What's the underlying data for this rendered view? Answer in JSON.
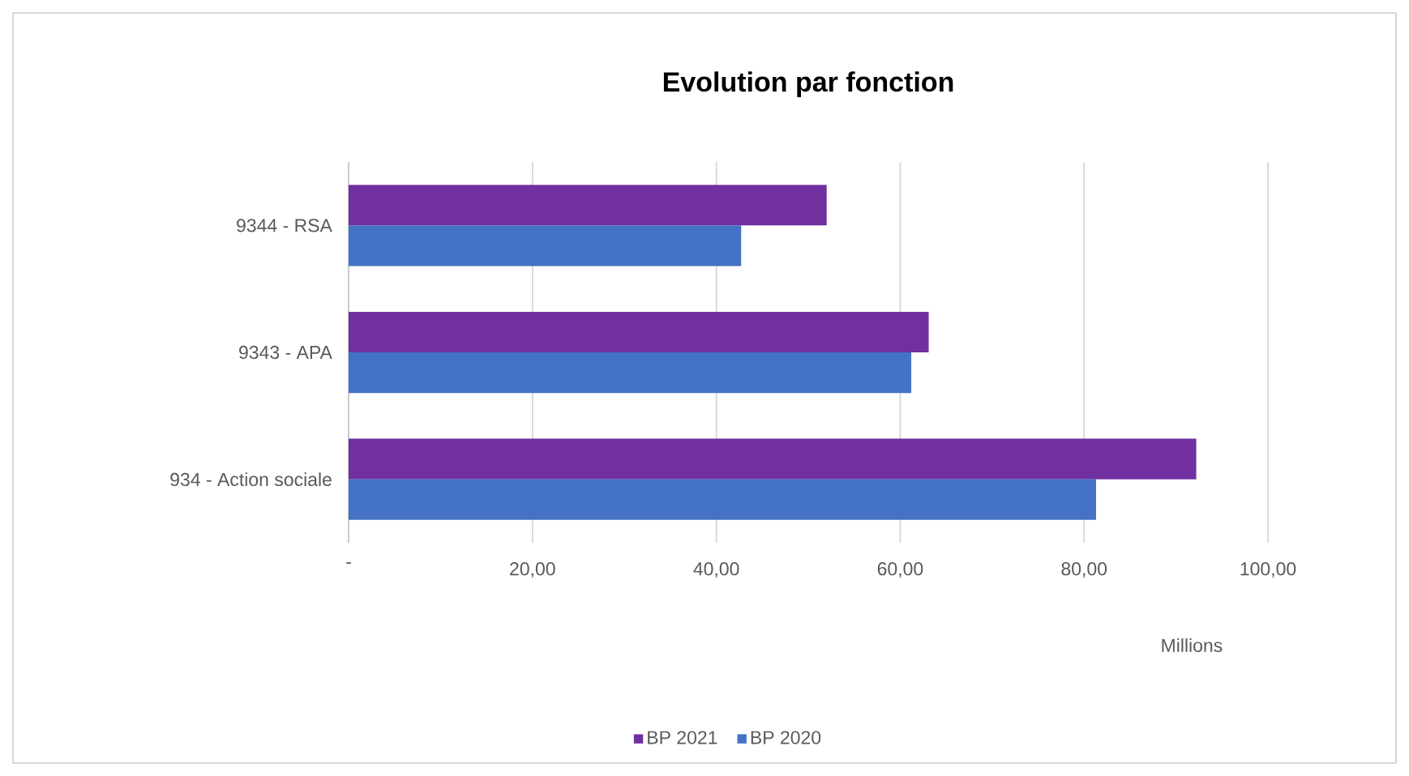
{
  "chart_data": {
    "type": "bar",
    "orientation": "horizontal",
    "title": "Evolution par fonction",
    "xlabel": "Millions",
    "categories": [
      "9344 - RSA",
      "9343 - APA",
      "934 - Action sociale"
    ],
    "series": [
      {
        "name": "BP 2021",
        "color": "#7030a0",
        "values": [
          52.0,
          63.1,
          92.2
        ]
      },
      {
        "name": "BP 2020",
        "color": "#4472c4",
        "values": [
          42.7,
          61.2,
          81.3
        ]
      }
    ],
    "xlim": [
      0,
      100
    ],
    "xticks": [
      {
        "value": 0,
        "label": "-"
      },
      {
        "value": 20,
        "label": "20,00"
      },
      {
        "value": 40,
        "label": "40,00"
      },
      {
        "value": 60,
        "label": "60,00"
      },
      {
        "value": 80,
        "label": "80,00"
      },
      {
        "value": 100,
        "label": "100,00"
      }
    ],
    "grid": "x",
    "legend": "bottom"
  }
}
